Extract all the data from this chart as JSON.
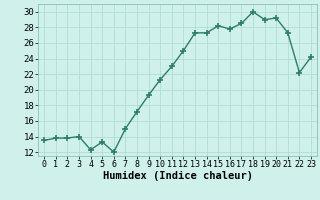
{
  "x": [
    0,
    1,
    2,
    3,
    4,
    5,
    6,
    7,
    8,
    9,
    10,
    11,
    12,
    13,
    14,
    15,
    16,
    17,
    18,
    19,
    20,
    21,
    22,
    23
  ],
  "y": [
    13.5,
    13.8,
    13.8,
    14.0,
    12.3,
    13.3,
    12.0,
    15.0,
    17.2,
    19.3,
    21.3,
    23.0,
    25.0,
    27.3,
    27.3,
    28.2,
    27.8,
    28.5,
    30.0,
    29.0,
    29.2,
    27.3,
    22.2,
    24.2
  ],
  "line_color": "#2d7d6b",
  "marker": "+",
  "marker_size": 4,
  "marker_lw": 1.2,
  "line_width": 1.0,
  "bg_color": "#cff0eb",
  "grid_color": "#b0ddd5",
  "xlabel": "Humidex (Indice chaleur)",
  "xlabel_fontsize": 7.5,
  "tick_fontsize": 6.5,
  "ylim": [
    11.5,
    31
  ],
  "yticks": [
    12,
    14,
    16,
    18,
    20,
    22,
    24,
    26,
    28,
    30
  ],
  "xlim": [
    -0.5,
    23.5
  ],
  "xticks": [
    0,
    1,
    2,
    3,
    4,
    5,
    6,
    7,
    8,
    9,
    10,
    11,
    12,
    13,
    14,
    15,
    16,
    17,
    18,
    19,
    20,
    21,
    22,
    23
  ]
}
